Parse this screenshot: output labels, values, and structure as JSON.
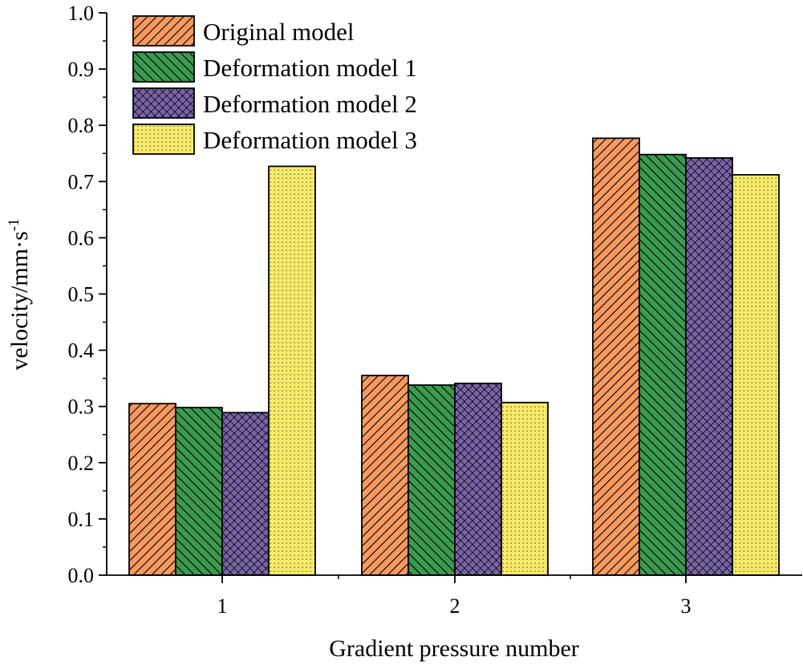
{
  "chart_data": {
    "type": "bar",
    "title": "",
    "xlabel": "Gradient pressure number",
    "ylabel": "velocity/mm·s",
    "ylabel_superscript": "-1",
    "categories": [
      "1",
      "2",
      "3"
    ],
    "ylim": [
      0.0,
      1.0
    ],
    "yticks": [
      "0.0",
      "0.1",
      "0.2",
      "0.3",
      "0.4",
      "0.5",
      "0.6",
      "0.7",
      "0.8",
      "0.9",
      "1.0"
    ],
    "grid": false,
    "legend_position": "top-left",
    "series": [
      {
        "name": "Original model",
        "values": [
          0.305,
          0.355,
          0.777
        ],
        "color": "#f79a60",
        "pattern": "hatch-forward"
      },
      {
        "name": "Deformation model 1",
        "values": [
          0.298,
          0.338,
          0.748
        ],
        "color": "#3c9a50",
        "pattern": "hatch-backward"
      },
      {
        "name": "Deformation model 2",
        "values": [
          0.289,
          0.341,
          0.742
        ],
        "color": "#7a64a8",
        "pattern": "crosshatch"
      },
      {
        "name": "Deformation model 3",
        "values": [
          0.727,
          0.307,
          0.712
        ],
        "color": "#f5ea6a",
        "pattern": "dots"
      }
    ]
  }
}
